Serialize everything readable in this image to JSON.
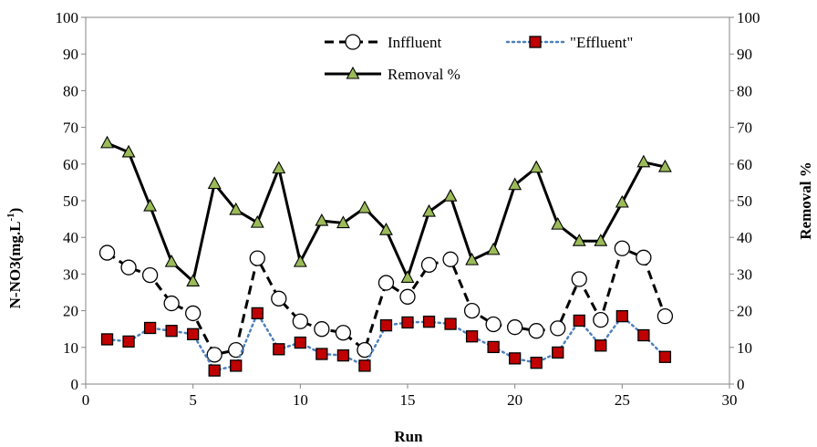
{
  "chart_data": {
    "type": "line",
    "xlabel": "Run",
    "ylabel_left": "N-NO3(mg.L",
    "ylabel_left_sup": "-1",
    "ylabel_left_close": ")",
    "ylabel_right": "Removal %",
    "xlim": [
      0,
      30
    ],
    "ylim": [
      0,
      100
    ],
    "y2lim": [
      0,
      100
    ],
    "x_ticks": [
      "0",
      "5",
      "10",
      "15",
      "20",
      "25",
      "30"
    ],
    "y_ticks": [
      "0",
      "10",
      "20",
      "30",
      "40",
      "50",
      "60",
      "70",
      "80",
      "90",
      "100"
    ],
    "y2_ticks": [
      "0",
      "10",
      "20",
      "30",
      "40",
      "50",
      "60",
      "70",
      "80",
      "90",
      "100"
    ],
    "grid": false,
    "legend_position": "top-right",
    "x": [
      1,
      2,
      3,
      4,
      5,
      6,
      7,
      8,
      9,
      10,
      11,
      12,
      13,
      14,
      15,
      16,
      17,
      18,
      19,
      20,
      21,
      22,
      23,
      24,
      25,
      26,
      27
    ],
    "series": [
      {
        "name": "Inffluent",
        "axis": "left",
        "style": "dashed",
        "marker": "open-circle",
        "color": "#000000",
        "values": [
          35.8,
          31.8,
          29.7,
          22,
          19.3,
          8,
          9.3,
          34.3,
          23.3,
          17.1,
          15,
          14,
          9.3,
          27.6,
          23.8,
          32.5,
          34,
          20,
          16.3,
          15.5,
          14.5,
          15.2,
          28.6,
          17.5,
          37,
          34.5,
          18.5
        ]
      },
      {
        "name": "\"Effluent\"",
        "axis": "left",
        "style": "dotted",
        "marker": "square",
        "color": "#4f81bd",
        "marker_fill": "#c00000",
        "values": [
          12.2,
          11.6,
          15.3,
          14.5,
          13.6,
          3.7,
          5,
          19.3,
          9.5,
          11.3,
          8.2,
          7.8,
          5,
          16,
          16.8,
          17,
          16.4,
          13,
          10.1,
          7,
          5.8,
          8.6,
          17.3,
          10.5,
          18.5,
          13.3,
          7.4
        ]
      },
      {
        "name": "Removal %",
        "axis": "right",
        "style": "solid",
        "marker": "triangle",
        "color": "#000000",
        "marker_fill": "#9bbb59",
        "values": [
          65.7,
          63.2,
          48.5,
          33.3,
          28,
          54.6,
          47.5,
          44,
          58.8,
          33.3,
          44.5,
          43.9,
          48,
          42,
          29,
          47,
          51.2,
          33.8,
          36.6,
          54.3,
          59,
          43.5,
          39,
          39,
          49.5,
          60.5,
          59.2
        ]
      }
    ]
  }
}
